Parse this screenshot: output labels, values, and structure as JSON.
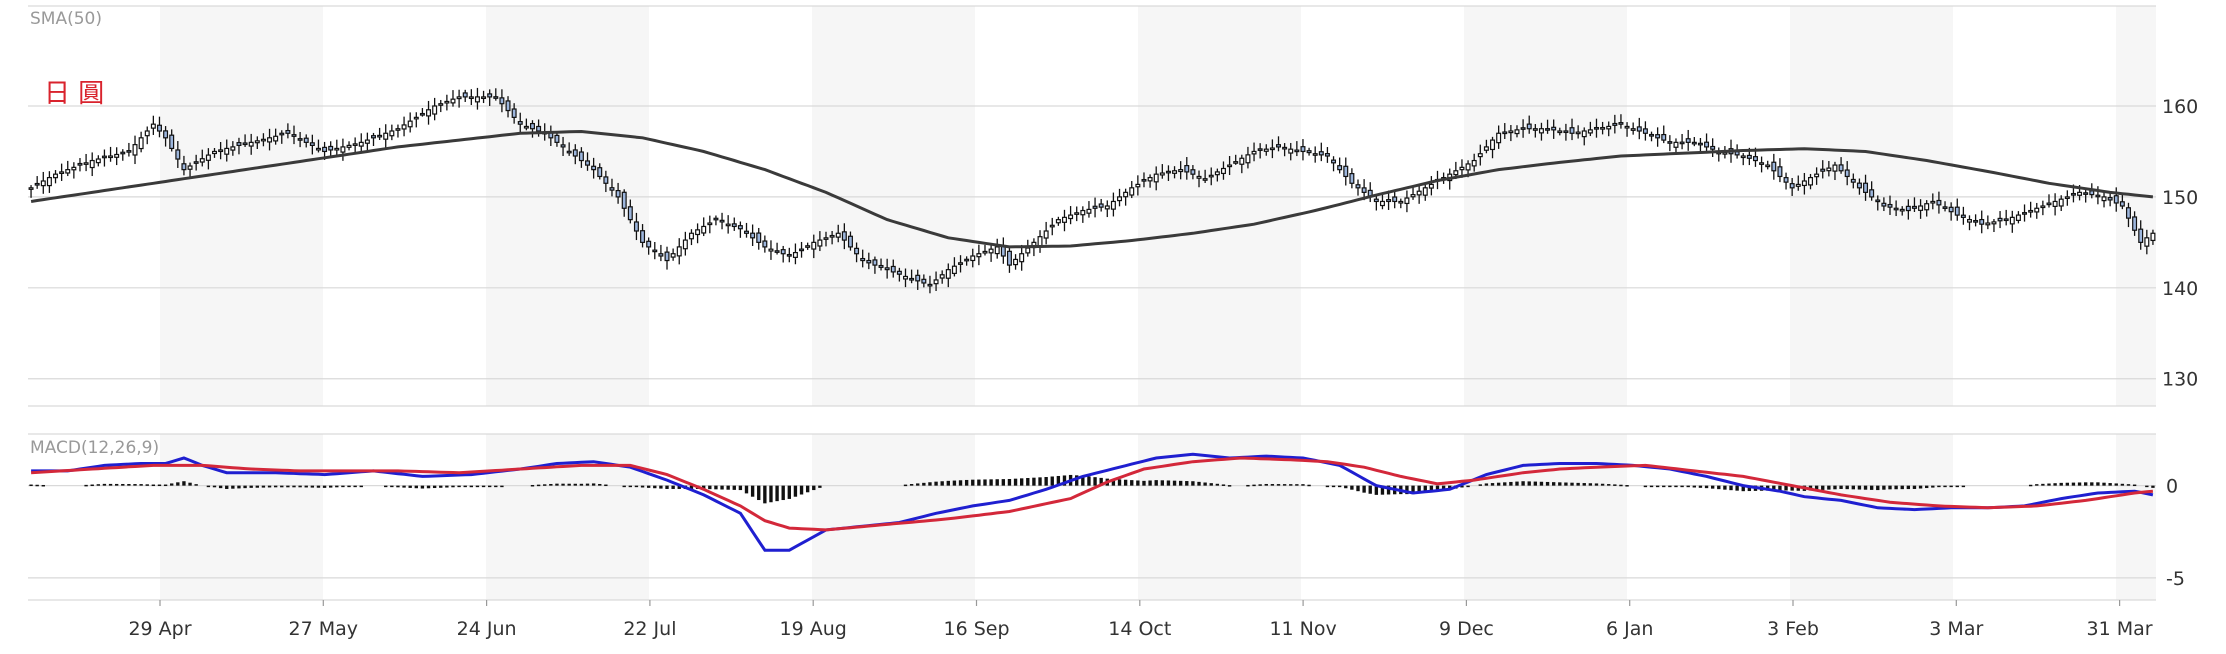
{
  "colors": {
    "up_fill": "#ffffff",
    "down_fill": "#9db6dd",
    "candle_border": "#111111",
    "sma": "#3a3a3a",
    "macd": "#1f1fd0",
    "signal": "#d3283a",
    "histogram": "#111111",
    "band": "#f6f6f6",
    "grid": "#d9d9d9",
    "watermark": "#d9232d"
  },
  "watermark_text": "日 圓",
  "chart_data": [
    {
      "type": "candlestick",
      "title": "SMA(50)",
      "y_ticks": [
        "160",
        "150",
        "140",
        "130"
      ],
      "ylim": [
        127,
        171
      ],
      "grid": true,
      "x_ticks": [
        "29 Apr",
        "27 May",
        "24 Jun",
        "22 Jul",
        "19 Aug",
        "16 Sep",
        "14 Oct",
        "11 Nov",
        "9 Dec",
        "6 Jan",
        "3 Feb",
        "3 Mar",
        "31 Mar"
      ],
      "close_anchors": [
        [
          0,
          151.0
        ],
        [
          4,
          152.5
        ],
        [
          10,
          154.0
        ],
        [
          16,
          155.0
        ],
        [
          20,
          158.0
        ],
        [
          22,
          156.5
        ],
        [
          25,
          153.0
        ],
        [
          30,
          155.0
        ],
        [
          36,
          156.0
        ],
        [
          42,
          157.0
        ],
        [
          48,
          155.0
        ],
        [
          54,
          156.0
        ],
        [
          60,
          157.5
        ],
        [
          66,
          160.0
        ],
        [
          70,
          161.0
        ],
        [
          76,
          161.0
        ],
        [
          80,
          158.0
        ],
        [
          84,
          157.0
        ],
        [
          88,
          155.0
        ],
        [
          92,
          153.0
        ],
        [
          96,
          150.0
        ],
        [
          100,
          145.0
        ],
        [
          104,
          143.0
        ],
        [
          108,
          146.0
        ],
        [
          112,
          147.5
        ],
        [
          116,
          146.5
        ],
        [
          120,
          144.5
        ],
        [
          124,
          143.5
        ],
        [
          128,
          145.0
        ],
        [
          132,
          146.0
        ],
        [
          136,
          143.0
        ],
        [
          140,
          142.0
        ],
        [
          144,
          141.0
        ],
        [
          147,
          140.3
        ],
        [
          150,
          142.0
        ],
        [
          154,
          143.5
        ],
        [
          158,
          144.5
        ],
        [
          160,
          142.5
        ],
        [
          164,
          145.0
        ],
        [
          168,
          147.5
        ],
        [
          172,
          148.5
        ],
        [
          176,
          149.0
        ],
        [
          180,
          151.0
        ],
        [
          184,
          152.5
        ],
        [
          188,
          153.0
        ],
        [
          192,
          152.0
        ],
        [
          196,
          153.5
        ],
        [
          200,
          155.0
        ],
        [
          204,
          155.5
        ],
        [
          208,
          155.0
        ],
        [
          212,
          154.5
        ],
        [
          216,
          151.5
        ],
        [
          220,
          149.5
        ],
        [
          224,
          149.5
        ],
        [
          228,
          151.0
        ],
        [
          232,
          152.5
        ],
        [
          236,
          154.0
        ],
        [
          240,
          157.0
        ],
        [
          244,
          157.5
        ],
        [
          248,
          157.5
        ],
        [
          252,
          157.0
        ],
        [
          256,
          157.5
        ],
        [
          260,
          158.0
        ],
        [
          264,
          157.0
        ],
        [
          268,
          156.0
        ],
        [
          272,
          156.0
        ],
        [
          276,
          155.0
        ],
        [
          280,
          154.5
        ],
        [
          284,
          153.5
        ],
        [
          288,
          151.0
        ],
        [
          292,
          152.5
        ],
        [
          295,
          153.5
        ],
        [
          299,
          151.0
        ],
        [
          303,
          149.0
        ],
        [
          307,
          148.5
        ],
        [
          311,
          149.5
        ],
        [
          315,
          148.0
        ],
        [
          319,
          147.0
        ],
        [
          323,
          147.5
        ],
        [
          327,
          148.5
        ],
        [
          331,
          149.5
        ],
        [
          335,
          150.5
        ],
        [
          339,
          150.0
        ],
        [
          342,
          149.0
        ],
        [
          345,
          145.0
        ],
        [
          347,
          146.0
        ]
      ],
      "sma_anchors": [
        [
          0,
          149.5
        ],
        [
          20,
          151.5
        ],
        [
          40,
          153.5
        ],
        [
          60,
          155.5
        ],
        [
          80,
          157.0
        ],
        [
          90,
          157.2
        ],
        [
          100,
          156.5
        ],
        [
          110,
          155.0
        ],
        [
          120,
          153.0
        ],
        [
          130,
          150.5
        ],
        [
          140,
          147.5
        ],
        [
          150,
          145.5
        ],
        [
          160,
          144.5
        ],
        [
          170,
          144.6
        ],
        [
          180,
          145.2
        ],
        [
          190,
          146.0
        ],
        [
          200,
          147.0
        ],
        [
          210,
          148.5
        ],
        [
          220,
          150.2
        ],
        [
          230,
          151.8
        ],
        [
          240,
          153.0
        ],
        [
          250,
          153.8
        ],
        [
          260,
          154.5
        ],
        [
          270,
          154.8
        ],
        [
          280,
          155.1
        ],
        [
          290,
          155.3
        ],
        [
          300,
          155.0
        ],
        [
          310,
          154.0
        ],
        [
          320,
          152.8
        ],
        [
          330,
          151.5
        ],
        [
          340,
          150.5
        ],
        [
          347,
          150.0
        ]
      ]
    },
    {
      "type": "line",
      "title": "MACD(12,26,9)",
      "y_ticks": [
        "0",
        "-5"
      ],
      "ylim": [
        -6.2,
        2.8
      ],
      "grid": true,
      "macd_anchors": [
        [
          0,
          0.8
        ],
        [
          6,
          0.8
        ],
        [
          12,
          1.1
        ],
        [
          18,
          1.2
        ],
        [
          22,
          1.2
        ],
        [
          25,
          1.5
        ],
        [
          28,
          1.1
        ],
        [
          32,
          0.7
        ],
        [
          40,
          0.7
        ],
        [
          48,
          0.6
        ],
        [
          56,
          0.8
        ],
        [
          64,
          0.5
        ],
        [
          72,
          0.6
        ],
        [
          80,
          0.9
        ],
        [
          86,
          1.2
        ],
        [
          92,
          1.3
        ],
        [
          98,
          1.0
        ],
        [
          104,
          0.3
        ],
        [
          110,
          -0.5
        ],
        [
          116,
          -1.5
        ],
        [
          120,
          -3.5
        ],
        [
          124,
          -3.5
        ],
        [
          130,
          -2.4
        ],
        [
          136,
          -2.2
        ],
        [
          142,
          -2.0
        ],
        [
          148,
          -1.5
        ],
        [
          154,
          -1.1
        ],
        [
          160,
          -0.8
        ],
        [
          166,
          -0.2
        ],
        [
          172,
          0.5
        ],
        [
          178,
          1.0
        ],
        [
          184,
          1.5
        ],
        [
          190,
          1.7
        ],
        [
          196,
          1.5
        ],
        [
          202,
          1.6
        ],
        [
          208,
          1.5
        ],
        [
          214,
          1.1
        ],
        [
          220,
          0.0
        ],
        [
          226,
          -0.4
        ],
        [
          232,
          -0.2
        ],
        [
          238,
          0.6
        ],
        [
          244,
          1.1
        ],
        [
          250,
          1.2
        ],
        [
          256,
          1.2
        ],
        [
          262,
          1.1
        ],
        [
          268,
          0.9
        ],
        [
          274,
          0.5
        ],
        [
          280,
          0.0
        ],
        [
          286,
          -0.3
        ],
        [
          290,
          -0.6
        ],
        [
          296,
          -0.8
        ],
        [
          302,
          -1.2
        ],
        [
          308,
          -1.3
        ],
        [
          314,
          -1.2
        ],
        [
          320,
          -1.2
        ],
        [
          326,
          -1.1
        ],
        [
          332,
          -0.7
        ],
        [
          338,
          -0.4
        ],
        [
          344,
          -0.3
        ],
        [
          347,
          -0.5
        ]
      ],
      "signal_anchors": [
        [
          0,
          0.7
        ],
        [
          10,
          0.9
        ],
        [
          20,
          1.1
        ],
        [
          28,
          1.1
        ],
        [
          36,
          0.9
        ],
        [
          44,
          0.8
        ],
        [
          52,
          0.8
        ],
        [
          60,
          0.8
        ],
        [
          70,
          0.7
        ],
        [
          80,
          0.9
        ],
        [
          90,
          1.1
        ],
        [
          98,
          1.1
        ],
        [
          104,
          0.6
        ],
        [
          110,
          -0.2
        ],
        [
          116,
          -1.1
        ],
        [
          120,
          -1.9
        ],
        [
          124,
          -2.3
        ],
        [
          130,
          -2.4
        ],
        [
          140,
          -2.1
        ],
        [
          150,
          -1.8
        ],
        [
          160,
          -1.4
        ],
        [
          170,
          -0.7
        ],
        [
          176,
          0.2
        ],
        [
          182,
          0.9
        ],
        [
          190,
          1.3
        ],
        [
          198,
          1.5
        ],
        [
          206,
          1.4
        ],
        [
          212,
          1.3
        ],
        [
          218,
          1.0
        ],
        [
          224,
          0.5
        ],
        [
          230,
          0.1
        ],
        [
          236,
          0.3
        ],
        [
          244,
          0.7
        ],
        [
          250,
          0.9
        ],
        [
          256,
          1.0
        ],
        [
          264,
          1.1
        ],
        [
          272,
          0.8
        ],
        [
          280,
          0.5
        ],
        [
          288,
          0.0
        ],
        [
          296,
          -0.5
        ],
        [
          304,
          -0.9
        ],
        [
          312,
          -1.1
        ],
        [
          320,
          -1.2
        ],
        [
          328,
          -1.1
        ],
        [
          336,
          -0.8
        ],
        [
          344,
          -0.4
        ],
        [
          347,
          -0.3
        ]
      ]
    }
  ]
}
